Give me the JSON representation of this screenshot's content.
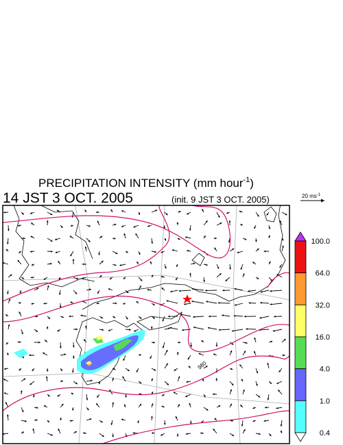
{
  "title": {
    "text": "PRECIPITATION INTENSITY (mm hour",
    "superscript": "-1",
    "close": ")"
  },
  "time": "14 JST 3 OCT. 2005",
  "init": "(init. 9 JST 3 OCT. 2005)",
  "wind_scale": {
    "text": "20 ms",
    "superscript": "-1"
  },
  "contour_label": "980",
  "colorbar": {
    "labels": [
      "100.0",
      "64.0",
      "32.0",
      "16.0",
      "4.0",
      "1.0",
      "0.4"
    ],
    "colors": [
      "#ee1111",
      "#ff9933",
      "#ffff66",
      "#55dd55",
      "#6666ff",
      "#55ffff"
    ],
    "over_color": "#bb33ee",
    "under_color": "#ffffff"
  }
}
